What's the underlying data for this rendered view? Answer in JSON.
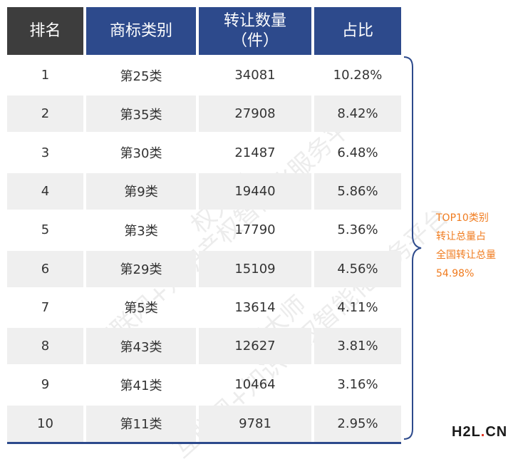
{
  "header": {
    "rank": "排名",
    "class": "商标类别",
    "count_line1": "转让数量",
    "count_line2": "（件）",
    "percent": "占比"
  },
  "rows": [
    {
      "rank": "1",
      "class": "第25类",
      "count": "34081",
      "percent": "10.28%"
    },
    {
      "rank": "2",
      "class": "第35类",
      "count": "27908",
      "percent": "8.42%"
    },
    {
      "rank": "3",
      "class": "第30类",
      "count": "21487",
      "percent": "6.48%"
    },
    {
      "rank": "4",
      "class": "第9类",
      "count": "19440",
      "percent": "5.86%"
    },
    {
      "rank": "5",
      "class": "第3类",
      "count": "17790",
      "percent": "5.36%"
    },
    {
      "rank": "6",
      "class": "第29类",
      "count": "15109",
      "percent": "4.56%"
    },
    {
      "rank": "7",
      "class": "第5类",
      "count": "13614",
      "percent": "4.11%"
    },
    {
      "rank": "8",
      "class": "第43类",
      "count": "12627",
      "percent": "3.81%"
    },
    {
      "rank": "9",
      "class": "第41类",
      "count": "10464",
      "percent": "3.16%"
    },
    {
      "rank": "10",
      "class": "第11类",
      "count": "9781",
      "percent": "2.95%"
    }
  ],
  "note": [
    "TOP10类别",
    "转让总量占",
    "全国转让总量",
    "54.98%"
  ],
  "watermark": [
    "互联网+知识产权智能化服务平台",
    "权大师"
  ],
  "logo": {
    "main": "H2L",
    "dot": ".",
    "suffix": "CN"
  },
  "chart_data": {
    "type": "table",
    "columns": [
      "排名",
      "商标类别",
      "转让数量（件）",
      "占比"
    ],
    "rows": [
      [
        "1",
        "第25类",
        34081,
        "10.28%"
      ],
      [
        "2",
        "第35类",
        27908,
        "8.42%"
      ],
      [
        "3",
        "第30类",
        21487,
        "6.48%"
      ],
      [
        "4",
        "第9类",
        19440,
        "5.86%"
      ],
      [
        "5",
        "第3类",
        17790,
        "5.36%"
      ],
      [
        "6",
        "第29类",
        15109,
        "4.56%"
      ],
      [
        "7",
        "第5类",
        13614,
        "4.11%"
      ],
      [
        "8",
        "第43类",
        12627,
        "3.81%"
      ],
      [
        "9",
        "第41类",
        10464,
        "3.16%"
      ],
      [
        "10",
        "第11类",
        9781,
        "2.95%"
      ]
    ],
    "colors": {
      "header_dark": "#3d3d3d",
      "header_blue": "#2d4a8c",
      "row_shade": "#efefef",
      "note": "#f07b1e"
    }
  }
}
